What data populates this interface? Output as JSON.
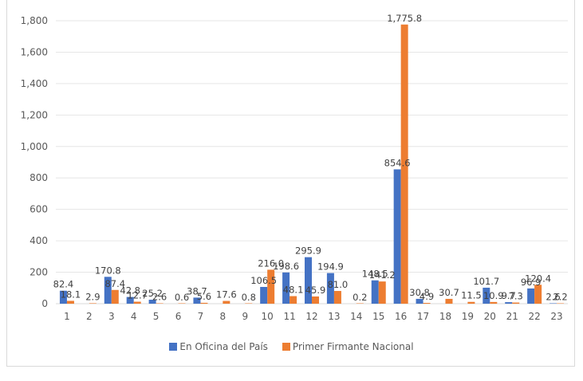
{
  "chart_data": {
    "type": "bar",
    "title": "",
    "xlabel": "",
    "ylabel": "",
    "ylim": [
      0,
      1800
    ],
    "yticks": [
      0,
      200,
      400,
      600,
      800,
      1000,
      1200,
      1400,
      1600,
      1800
    ],
    "ytick_labels": [
      "0",
      "200",
      "400",
      "600",
      "800",
      "1,000",
      "1,200",
      "1,400",
      "1,600",
      "1,800"
    ],
    "grid": true,
    "legend_position": "bottom",
    "categories": [
      "1",
      "2",
      "3",
      "4",
      "5",
      "6",
      "7",
      "8",
      "9",
      "10",
      "11",
      "12",
      "13",
      "14",
      "15",
      "16",
      "17",
      "18",
      "19",
      "20",
      "21",
      "22",
      "23"
    ],
    "series": [
      {
        "name": "En Oficina del País",
        "color": "#4472C4",
        "values": [
          82.4,
          null,
          170.8,
          42.8,
          25.2,
          null,
          38.7,
          null,
          null,
          106.5,
          198.6,
          295.9,
          194.9,
          null,
          148.5,
          854.6,
          30.8,
          null,
          null,
          101.7,
          9.7,
          96.9,
          2.6
        ]
      },
      {
        "name": "Primer Firmante Nacional",
        "color": "#ED7D31",
        "values": [
          18.1,
          2.9,
          87.4,
          12.7,
          2.6,
          0.6,
          5.6,
          17.6,
          0.8,
          216.0,
          48.1,
          45.9,
          81.0,
          0.2,
          141.2,
          1775.8,
          4.9,
          30.7,
          11.5,
          10.9,
          7.3,
          120.4,
          2.2
        ]
      }
    ],
    "data_labels": [
      {
        "cat": "1",
        "series": 0,
        "text": "82.4"
      },
      {
        "cat": "1",
        "series": 1,
        "text": "18.1"
      },
      {
        "cat": "2",
        "series": 1,
        "text": "2.9"
      },
      {
        "cat": "3",
        "series": 0,
        "text": "170.8"
      },
      {
        "cat": "3",
        "series": 1,
        "text": "87.4"
      },
      {
        "cat": "4",
        "series": 0,
        "text": "42.8"
      },
      {
        "cat": "4",
        "series": 1,
        "text": "12.7"
      },
      {
        "cat": "5",
        "series": 0,
        "text": "25.2"
      },
      {
        "cat": "5",
        "series": 1,
        "text": "2.6"
      },
      {
        "cat": "6",
        "series": 1,
        "text": "0.6"
      },
      {
        "cat": "7",
        "series": 0,
        "text": "38.7"
      },
      {
        "cat": "7",
        "series": 1,
        "text": "5.6"
      },
      {
        "cat": "8",
        "series": 1,
        "text": "17.6"
      },
      {
        "cat": "9",
        "series": 1,
        "text": "0.8"
      },
      {
        "cat": "10",
        "series": 0,
        "text": "106.5"
      },
      {
        "cat": "10",
        "series": 1,
        "text": "216.0"
      },
      {
        "cat": "11",
        "series": 0,
        "text": "198.6"
      },
      {
        "cat": "11",
        "series": 1,
        "text": "48.1"
      },
      {
        "cat": "12",
        "series": 0,
        "text": "295.9"
      },
      {
        "cat": "12",
        "series": 1,
        "text": "45.9"
      },
      {
        "cat": "13",
        "series": 0,
        "text": "194.9"
      },
      {
        "cat": "13",
        "series": 1,
        "text": "81.0"
      },
      {
        "cat": "14",
        "series": 1,
        "text": "0.2"
      },
      {
        "cat": "15",
        "series": 0,
        "text": "148.5"
      },
      {
        "cat": "15",
        "series": 1,
        "text": "141.2"
      },
      {
        "cat": "16",
        "series": 0,
        "text": "854.6"
      },
      {
        "cat": "16",
        "series": 1,
        "text": "1,775.8"
      },
      {
        "cat": "17",
        "series": 0,
        "text": "30.8"
      },
      {
        "cat": "17",
        "series": 1,
        "text": "4.9"
      },
      {
        "cat": "18",
        "series": 1,
        "text": "30.7"
      },
      {
        "cat": "19",
        "series": 1,
        "text": "11.5"
      },
      {
        "cat": "20",
        "series": 0,
        "text": "101.7"
      },
      {
        "cat": "20",
        "series": 1,
        "text": "10.9"
      },
      {
        "cat": "21",
        "series": 0,
        "text": "9.7"
      },
      {
        "cat": "21",
        "series": 1,
        "text": "7.3"
      },
      {
        "cat": "22",
        "series": 0,
        "text": "96.9"
      },
      {
        "cat": "22",
        "series": 1,
        "text": "120.4"
      },
      {
        "cat": "23",
        "series": 0,
        "text": "2.6"
      },
      {
        "cat": "23",
        "series": 1,
        "text": "2.2"
      }
    ]
  },
  "legend": {
    "items": [
      {
        "label": "En Oficina del País",
        "color": "#4472C4"
      },
      {
        "label": "Primer Firmante Nacional",
        "color": "#ED7D31"
      }
    ]
  }
}
